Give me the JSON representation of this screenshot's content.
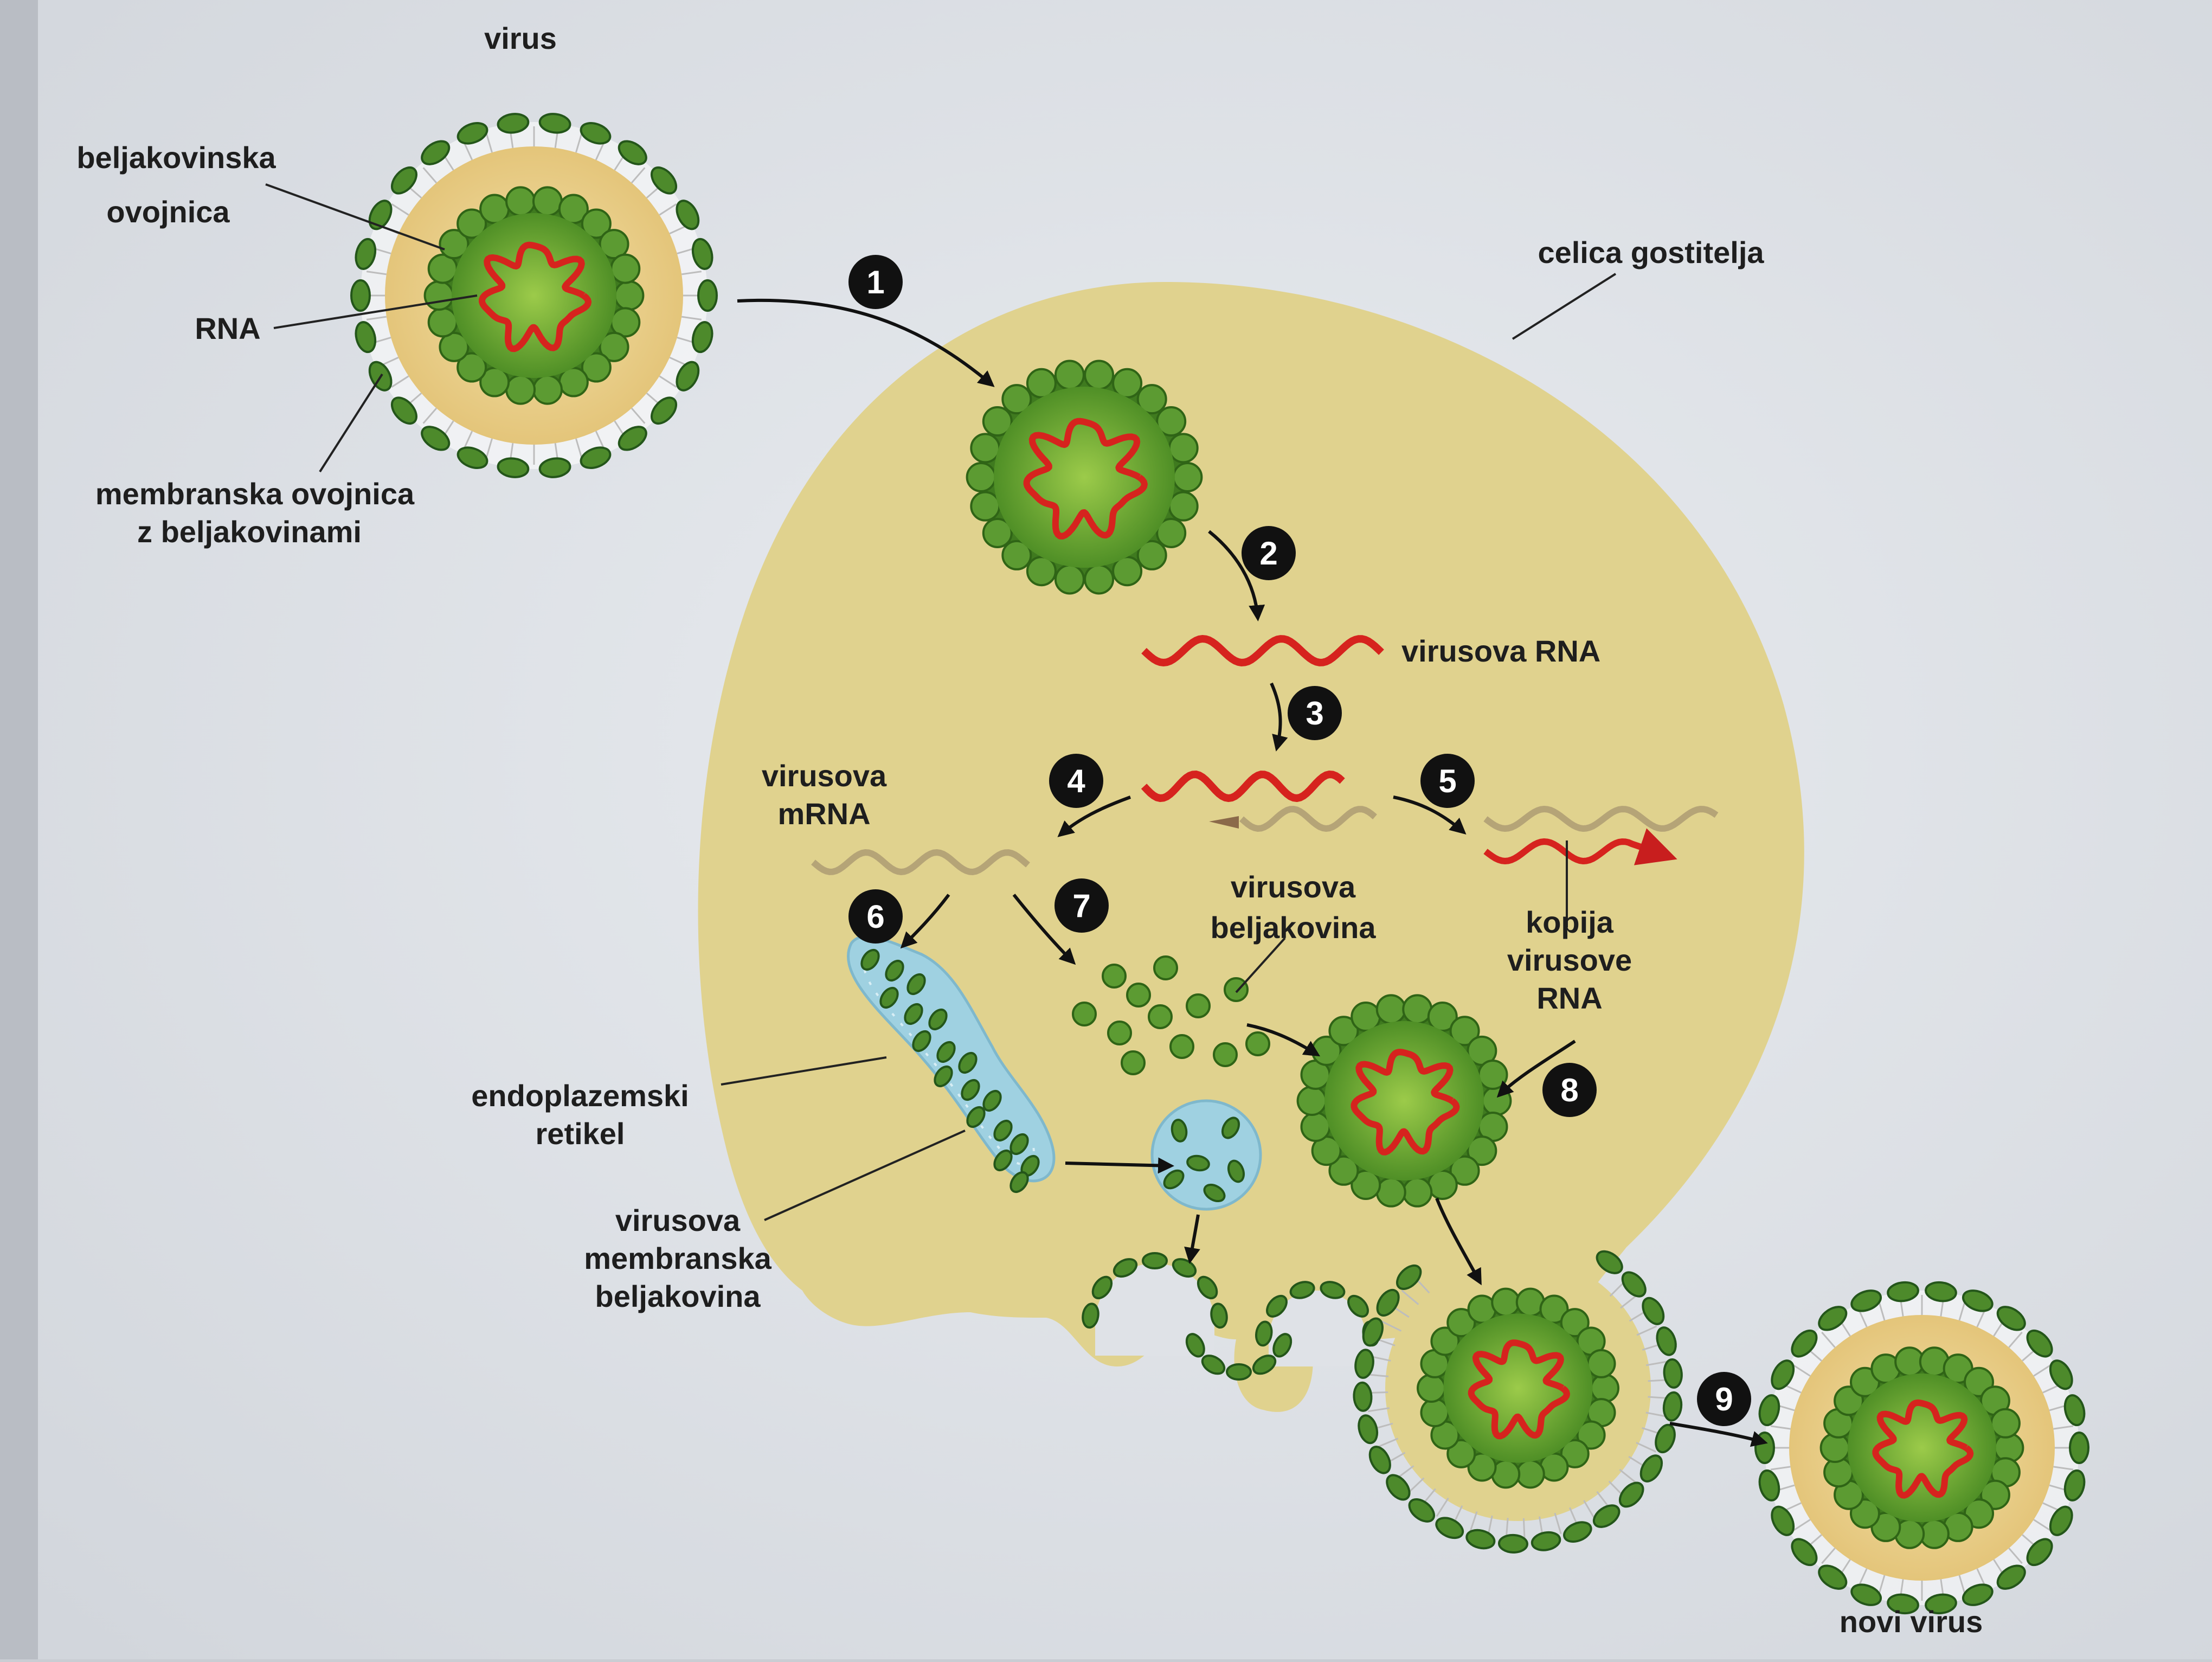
{
  "labels": {
    "virus": "virus",
    "protein_coat_l1": "beljakovinska",
    "protein_coat_l2": "ovojnica",
    "rna": "RNA",
    "envelope_l1": "membranska ovojnica",
    "envelope_l2": "z beljakovinami",
    "host_cell": "celica gostitelja",
    "viral_rna": "virusova RNA",
    "viral_mrna_l1": "virusova",
    "viral_mrna_l2": "mRNA",
    "viral_protein_l1": "virusova",
    "viral_protein_l2": "beljakovina",
    "rna_copy_l1": "kopija",
    "rna_copy_l2": "virusove",
    "rna_copy_l3": "RNA",
    "er_l1": "endoplazemski",
    "er_l2": "retikel",
    "membrane_protein_l1": "virusova",
    "membrane_protein_l2": "membranska",
    "membrane_protein_l3": "beljakovina",
    "new_virus": "novi virus"
  },
  "steps": [
    "1",
    "2",
    "3",
    "4",
    "5",
    "6",
    "7",
    "8",
    "9"
  ],
  "colors": {
    "cell": "#e0d28e",
    "capsomere": "#5c9b32",
    "rna": "#d6231e",
    "er": "#9fd1e1",
    "envelope_protein": "#4d8a2b",
    "background": "#dfe2e7"
  }
}
